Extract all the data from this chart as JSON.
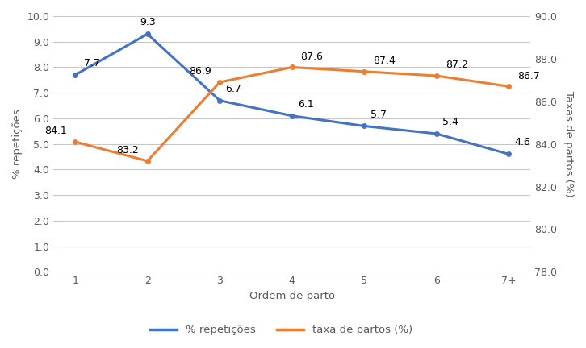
{
  "categories": [
    "1",
    "2",
    "3",
    "4",
    "5",
    "6",
    "7+"
  ],
  "repeticoes": [
    7.7,
    9.3,
    6.7,
    6.1,
    5.7,
    5.4,
    4.6
  ],
  "taxa_partos": [
    84.1,
    83.2,
    86.9,
    87.6,
    87.4,
    87.2,
    86.7
  ],
  "repeticoes_color": "#4472C4",
  "taxa_partos_color": "#ED7D31",
  "left_ylim": [
    0.0,
    10.0
  ],
  "right_ylim": [
    78.0,
    90.0
  ],
  "left_yticks": [
    0.0,
    1.0,
    2.0,
    3.0,
    4.0,
    5.0,
    6.0,
    7.0,
    8.0,
    9.0,
    10.0
  ],
  "right_yticks": [
    78.0,
    80.0,
    82.0,
    84.0,
    86.0,
    88.0,
    90.0
  ],
  "xlabel": "Ordem de parto",
  "left_ylabel": "% repetições",
  "right_ylabel": "Taxas de partos (%)",
  "legend_repeticoes": "% repetições",
  "legend_taxa": "taxa de partos (%)",
  "background_color": "#ffffff",
  "grid_color": "#c8c8c8",
  "line_width": 2.2,
  "marker": "o",
  "marker_size": 4,
  "font_color": "#595959",
  "label_fontsize": 9.5,
  "tick_fontsize": 9,
  "annot_fontsize": 9
}
